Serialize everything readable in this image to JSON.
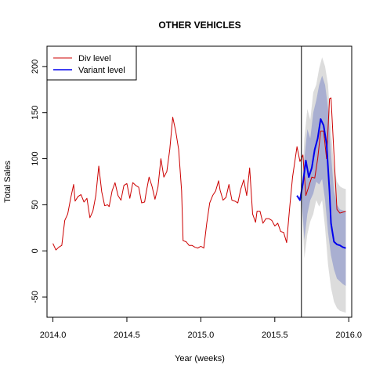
{
  "chart_data": {
    "type": "line",
    "title": "OTHER VEHICLES",
    "xlabel": "Year (weeks)",
    "ylabel": "Total Sales",
    "xlim": [
      2013.96,
      2016.02
    ],
    "ylim": [
      -72,
      222
    ],
    "x_ticks": [
      2014.0,
      2014.5,
      2015.0,
      2015.5,
      2016.0
    ],
    "x_tick_labels": [
      "2014.0",
      "2014.5",
      "2015.0",
      "2015.5",
      "2016.0"
    ],
    "y_ticks": [
      -50,
      0,
      50,
      100,
      150,
      200
    ],
    "y_tick_labels": [
      "-50",
      "0",
      "50",
      "100",
      "150",
      "200"
    ],
    "forecast_origin": 2015.68,
    "legend": {
      "placement": "top-left",
      "entries": [
        {
          "label": "Div level",
          "color": "#cc0000"
        },
        {
          "label": "Variant level",
          "color": "#0000ee"
        }
      ]
    },
    "series": [
      {
        "name": "Div level",
        "color": "#cc0000",
        "x": [
          2014.0,
          2014.02,
          2014.04,
          2014.06,
          2014.08,
          2014.1,
          2014.12,
          2014.14,
          2014.15,
          2014.17,
          2014.19,
          2014.21,
          2014.23,
          2014.25,
          2014.27,
          2014.29,
          2014.31,
          2014.33,
          2014.35,
          2014.37,
          2014.38,
          2014.4,
          2014.42,
          2014.44,
          2014.46,
          2014.48,
          2014.5,
          2014.52,
          2014.54,
          2014.56,
          2014.58,
          2014.6,
          2014.62,
          2014.63,
          2014.65,
          2014.67,
          2014.69,
          2014.71,
          2014.73,
          2014.75,
          2014.77,
          2014.79,
          2014.81,
          2014.83,
          2014.85,
          2014.87,
          2014.88,
          2014.9,
          2014.92,
          2014.94,
          2014.96,
          2014.98,
          2015.0,
          2015.02,
          2015.04,
          2015.06,
          2015.08,
          2015.1,
          2015.12,
          2015.13,
          2015.15,
          2015.17,
          2015.19,
          2015.21,
          2015.23,
          2015.25,
          2015.27,
          2015.29,
          2015.31,
          2015.33,
          2015.35,
          2015.37,
          2015.38,
          2015.4,
          2015.42,
          2015.44,
          2015.46,
          2015.48,
          2015.5,
          2015.52,
          2015.54,
          2015.56,
          2015.58,
          2015.6,
          2015.62,
          2015.63,
          2015.65,
          2015.67,
          2015.69,
          2015.71,
          2015.73,
          2015.75,
          2015.77,
          2015.79,
          2015.81,
          2015.83,
          2015.85,
          2015.87,
          2015.88,
          2015.9,
          2015.92,
          2015.94,
          2015.96,
          2015.98
        ],
        "y": [
          8,
          1,
          4,
          6,
          33,
          40,
          57,
          72,
          54,
          59,
          61,
          53,
          57,
          36,
          43,
          60,
          92,
          64,
          49,
          50,
          48,
          65,
          74,
          60,
          55,
          71,
          73,
          57,
          74,
          71,
          69,
          52,
          53,
          63,
          80,
          70,
          56,
          69,
          100,
          80,
          86,
          110,
          145,
          130,
          110,
          65,
          11,
          10,
          6,
          6,
          4,
          3,
          5,
          3,
          30,
          52,
          60,
          65,
          76,
          66,
          55,
          58,
          72,
          55,
          54,
          52,
          67,
          77,
          60,
          90,
          40,
          31,
          43,
          43,
          30,
          35,
          35,
          33,
          27,
          30,
          21,
          20,
          9,
          46,
          80,
          91,
          113,
          97,
          104,
          60,
          70,
          80,
          79,
          100,
          130,
          130,
          100,
          165,
          166,
          105,
          45,
          41,
          42,
          43
        ]
      },
      {
        "name": "Variant level",
        "color": "#0000ee",
        "x": [
          2015.65,
          2015.67,
          2015.69,
          2015.71,
          2015.73,
          2015.75,
          2015.77,
          2015.79,
          2015.81,
          2015.83,
          2015.85,
          2015.87,
          2015.88,
          2015.9,
          2015.92,
          2015.94,
          2015.96,
          2015.98
        ],
        "y": [
          60,
          55,
          73,
          98,
          80,
          90,
          110,
          122,
          143,
          136,
          116,
          64,
          30,
          10,
          7,
          6,
          4,
          3
        ]
      }
    ],
    "intervals": [
      {
        "level": "outer",
        "color": "#dcdcdc",
        "x": [
          2015.68,
          2015.7,
          2015.72,
          2015.74,
          2015.76,
          2015.78,
          2015.8,
          2015.82,
          2015.84,
          2015.86,
          2015.88,
          2015.9,
          2015.92,
          2015.94,
          2015.96,
          2015.98
        ],
        "upper": [
          60,
          122,
          154,
          142,
          172,
          180,
          198,
          210,
          200,
          180,
          130,
          90,
          75,
          70,
          68,
          67
        ],
        "lower": [
          60,
          -8,
          18,
          32,
          40,
          55,
          48,
          55,
          25,
          -15,
          -40,
          -55,
          -62,
          -65,
          -66,
          -67
        ]
      },
      {
        "level": "inner",
        "color": "#a9afd1",
        "x": [
          2015.68,
          2015.7,
          2015.72,
          2015.74,
          2015.76,
          2015.78,
          2015.8,
          2015.82,
          2015.84,
          2015.86,
          2015.88,
          2015.9,
          2015.92,
          2015.94,
          2015.96,
          2015.98
        ],
        "upper": [
          60,
          100,
          132,
          122,
          150,
          163,
          180,
          190,
          180,
          155,
          105,
          65,
          50,
          45,
          44,
          43
        ],
        "lower": [
          60,
          12,
          40,
          55,
          62,
          75,
          72,
          78,
          55,
          20,
          -5,
          -20,
          -30,
          -33,
          -36,
          -38
        ]
      }
    ]
  }
}
